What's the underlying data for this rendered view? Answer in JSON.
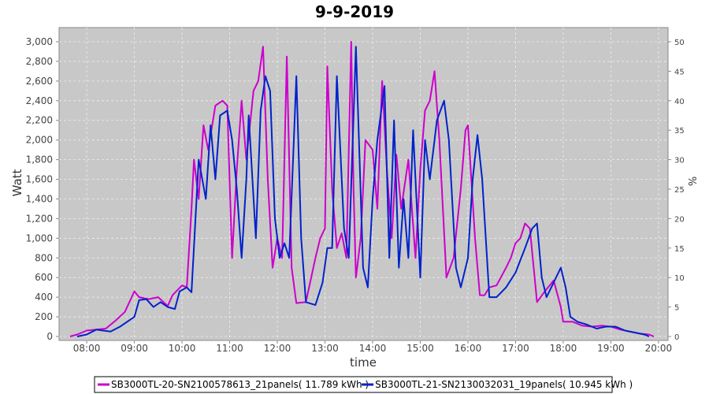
{
  "chart_data": {
    "type": "line",
    "title": "9-9-2019",
    "xlabel": "time",
    "ylabel": "Watt",
    "y2label": "%",
    "ylim": [
      0,
      3000
    ],
    "y2lim": [
      0,
      50
    ],
    "xlim": [
      7.42,
      20.2
    ],
    "grid": true,
    "legend_position": "bottom",
    "yticks": [
      "0",
      "200",
      "400",
      "600",
      "800",
      "1,000",
      "1,200",
      "1,400",
      "1,600",
      "1,800",
      "2,000",
      "2,200",
      "2,400",
      "2,600",
      "2,800",
      "3,000"
    ],
    "y2ticks": [
      "0",
      "5",
      "10",
      "15",
      "20",
      "25",
      "30",
      "35",
      "40",
      "45",
      "50"
    ],
    "xticks": [
      "08:00",
      "09:00",
      "10:00",
      "11:00",
      "12:00",
      "13:00",
      "14:00",
      "15:00",
      "16:00",
      "17:00",
      "18:00",
      "19:00",
      "20:00"
    ],
    "series": [
      {
        "name": "SB3000TL-20-SN2100578613_21panels( 11.789 kWh )",
        "color": "#cc00cc",
        "x": [
          7.65,
          7.8,
          8.0,
          8.2,
          8.4,
          8.6,
          8.8,
          9.0,
          9.1,
          9.3,
          9.5,
          9.7,
          9.8,
          10.0,
          10.1,
          10.2,
          10.25,
          10.35,
          10.45,
          10.55,
          10.7,
          10.85,
          10.95,
          11.05,
          11.15,
          11.25,
          11.35,
          11.5,
          11.6,
          11.7,
          11.8,
          11.9,
          12.0,
          12.1,
          12.2,
          12.3,
          12.4,
          12.6,
          12.8,
          12.9,
          13.0,
          13.05,
          13.15,
          13.25,
          13.35,
          13.45,
          13.55,
          13.6,
          13.65,
          13.75,
          13.85,
          14.0,
          14.1,
          14.2,
          14.3,
          14.4,
          14.5,
          14.6,
          14.75,
          14.9,
          15.0,
          15.1,
          15.2,
          15.3,
          15.4,
          15.55,
          15.7,
          15.85,
          15.95,
          16.0,
          16.15,
          16.25,
          16.35,
          16.45,
          16.6,
          16.8,
          16.9,
          17.0,
          17.1,
          17.2,
          17.3,
          17.45,
          17.6,
          17.8,
          17.95,
          18.0,
          18.2,
          18.4,
          18.6,
          18.8,
          19.0,
          19.2,
          19.4,
          19.6,
          19.8,
          19.9
        ],
        "y": [
          0,
          20,
          60,
          70,
          80,
          160,
          250,
          460,
          400,
          380,
          400,
          310,
          420,
          520,
          500,
          1300,
          1800,
          1400,
          2150,
          1900,
          2350,
          2400,
          2350,
          800,
          1700,
          2400,
          1800,
          2500,
          2600,
          2950,
          1600,
          700,
          1000,
          800,
          2850,
          700,
          340,
          350,
          800,
          1000,
          1100,
          2750,
          1500,
          900,
          1050,
          800,
          3000,
          1500,
          600,
          1000,
          2000,
          1900,
          1300,
          2600,
          1700,
          1000,
          1850,
          1300,
          1800,
          800,
          1700,
          2300,
          2400,
          2700,
          2000,
          600,
          800,
          1500,
          2100,
          2150,
          1000,
          420,
          420,
          500,
          520,
          700,
          800,
          950,
          1000,
          1150,
          1100,
          350,
          450,
          570,
          300,
          150,
          150,
          110,
          100,
          110,
          100,
          70,
          50,
          30,
          20,
          0
        ]
      },
      {
        "name": "SB3000TL-21-SN2130032031_19panels( 10.945 kWh )",
        "color": "#0022cc",
        "x": [
          7.8,
          8.0,
          8.2,
          8.5,
          8.7,
          9.0,
          9.1,
          9.25,
          9.4,
          9.55,
          9.7,
          9.85,
          9.95,
          10.1,
          10.2,
          10.35,
          10.5,
          10.6,
          10.7,
          10.8,
          10.95,
          11.05,
          11.15,
          11.25,
          11.35,
          11.4,
          11.55,
          11.65,
          11.75,
          11.85,
          11.95,
          12.05,
          12.15,
          12.25,
          12.4,
          12.5,
          12.6,
          12.8,
          12.95,
          13.05,
          13.15,
          13.25,
          13.4,
          13.5,
          13.65,
          13.8,
          13.9,
          14.0,
          14.1,
          14.25,
          14.35,
          14.45,
          14.55,
          14.65,
          14.75,
          14.85,
          15.0,
          15.1,
          15.2,
          15.35,
          15.5,
          15.6,
          15.75,
          15.85,
          16.0,
          16.1,
          16.2,
          16.3,
          16.45,
          16.6,
          16.8,
          17.0,
          17.2,
          17.35,
          17.45,
          17.55,
          17.65,
          17.8,
          17.95,
          18.05,
          18.15,
          18.3,
          18.5,
          18.7,
          18.9,
          19.1,
          19.3,
          19.5,
          19.7,
          19.8
        ],
        "y": [
          0,
          20,
          70,
          50,
          100,
          200,
          370,
          380,
          300,
          350,
          300,
          280,
          460,
          500,
          450,
          1800,
          1400,
          2150,
          1600,
          2250,
          2300,
          2000,
          1500,
          800,
          1600,
          2250,
          1000,
          2300,
          2650,
          2500,
          1200,
          800,
          950,
          800,
          2650,
          1000,
          350,
          320,
          550,
          900,
          900,
          2650,
          1100,
          800,
          2950,
          700,
          500,
          1400,
          2000,
          2550,
          800,
          2200,
          700,
          1400,
          800,
          2100,
          600,
          2000,
          1600,
          2200,
          2400,
          2000,
          700,
          500,
          800,
          1600,
          2050,
          1600,
          400,
          400,
          500,
          650,
          900,
          1100,
          1150,
          600,
          400,
          550,
          700,
          500,
          200,
          150,
          120,
          80,
          100,
          100,
          60,
          40,
          20,
          0
        ]
      }
    ]
  }
}
